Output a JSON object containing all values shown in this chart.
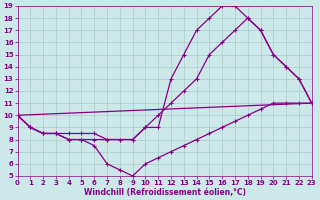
{
  "xlabel": "Windchill (Refroidissement éolien,°C)",
  "xlim": [
    0,
    23
  ],
  "ylim": [
    5,
    19
  ],
  "xticks": [
    0,
    1,
    2,
    3,
    4,
    5,
    6,
    7,
    8,
    9,
    10,
    11,
    12,
    13,
    14,
    15,
    16,
    17,
    18,
    19,
    20,
    21,
    22,
    23
  ],
  "yticks": [
    5,
    6,
    7,
    8,
    9,
    10,
    11,
    12,
    13,
    14,
    15,
    16,
    17,
    18,
    19
  ],
  "bg_color": "#cce8e8",
  "grid_color": "#aacccc",
  "line_color": "#880088",
  "curves": [
    {
      "x": [
        0,
        1,
        2,
        3,
        4,
        5,
        6,
        7,
        8,
        9,
        10,
        11,
        12,
        13,
        14,
        15,
        16,
        17,
        18,
        19,
        20,
        21,
        22,
        23
      ],
      "y": [
        10,
        9,
        8.5,
        8.5,
        8.5,
        8.5,
        8.5,
        8,
        8,
        8,
        9,
        9,
        13,
        15,
        17,
        18,
        19,
        19,
        18,
        17,
        15,
        14,
        13,
        11
      ],
      "marker": true
    },
    {
      "x": [
        0,
        1,
        2,
        3,
        4,
        5,
        6,
        7,
        8,
        9,
        10,
        11,
        12,
        13,
        14,
        15,
        16,
        17,
        18,
        19,
        20,
        21,
        22,
        23
      ],
      "y": [
        10,
        9,
        8.5,
        8.5,
        8,
        8,
        8,
        8,
        8,
        8,
        9,
        10,
        11,
        12,
        13,
        15,
        16,
        17,
        18,
        17,
        15,
        14,
        13,
        11
      ],
      "marker": true
    },
    {
      "x": [
        0,
        1,
        2,
        3,
        4,
        5,
        6,
        7,
        8,
        9,
        10,
        11,
        12,
        13,
        14,
        15,
        16,
        17,
        18,
        19,
        20,
        21,
        22,
        23
      ],
      "y": [
        10,
        9,
        8.5,
        8.5,
        8,
        8,
        7.5,
        6,
        5.5,
        5,
        6,
        6.5,
        7,
        7.5,
        8,
        8.5,
        9,
        9.5,
        10,
        10.5,
        11,
        11,
        11,
        11
      ],
      "marker": true
    },
    {
      "x": [
        0,
        23
      ],
      "y": [
        10,
        11
      ],
      "marker": false
    }
  ]
}
